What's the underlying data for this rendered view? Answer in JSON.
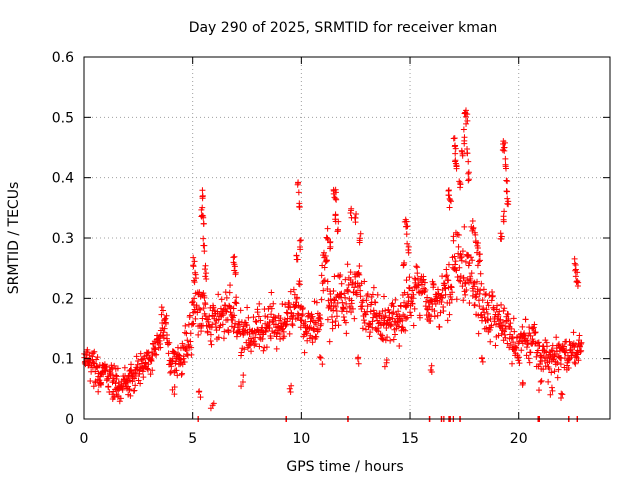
{
  "chart_data": {
    "type": "scatter",
    "title": "Day 290 of 2025, SRMTID for receiver kman",
    "xlabel": "GPS time / hours",
    "ylabel": "SRMTID / TECUs",
    "xlim": [
      0,
      24.2
    ],
    "ylim": [
      0,
      0.6
    ],
    "xticks": [
      0,
      5,
      10,
      15,
      20
    ],
    "xtick_labels": [
      "0",
      "5",
      "10",
      "15",
      "20"
    ],
    "yticks": [
      0,
      0.1,
      0.2,
      0.3,
      0.4,
      0.5,
      0.6
    ],
    "ytick_labels": [
      "0",
      "0.1",
      "0.2",
      "0.3",
      "0.4",
      "0.5",
      "0.6"
    ],
    "grid": true,
    "marker": "+",
    "color": "#ff0000",
    "series": [
      {
        "name": "SRMTID",
        "profile": {
          "t": [
            0,
            0.3,
            0.6,
            1.0,
            1.4,
            1.8,
            2.3,
            2.8,
            3.2,
            3.6,
            4.0,
            4.4,
            4.8,
            5.1,
            5.4,
            5.8,
            6.2,
            6.6,
            7.0,
            7.4,
            7.8,
            8.2,
            8.6,
            9.0,
            9.3,
            9.7,
            10.0,
            10.4,
            10.8,
            11.2,
            11.6,
            12.0,
            12.4,
            12.8,
            13.2,
            13.6,
            14.0,
            14.4,
            14.8,
            15.2,
            15.6,
            16.0,
            16.4,
            16.8,
            17.2,
            17.6,
            18.0,
            18.4,
            18.8,
            19.2,
            19.6,
            20.0,
            20.4,
            20.8,
            21.2,
            21.6,
            22.0,
            22.4,
            22.9
          ],
          "v": [
            0.1,
            0.09,
            0.08,
            0.07,
            0.06,
            0.065,
            0.07,
            0.09,
            0.12,
            0.14,
            0.11,
            0.09,
            0.12,
            0.18,
            0.17,
            0.15,
            0.16,
            0.18,
            0.17,
            0.14,
            0.12,
            0.13,
            0.15,
            0.16,
            0.18,
            0.2,
            0.17,
            0.15,
            0.18,
            0.22,
            0.21,
            0.19,
            0.21,
            0.2,
            0.18,
            0.17,
            0.15,
            0.16,
            0.2,
            0.21,
            0.22,
            0.2,
            0.19,
            0.22,
            0.25,
            0.24,
            0.2,
            0.18,
            0.16,
            0.17,
            0.14,
            0.12,
            0.14,
            0.13,
            0.11,
            0.1,
            0.1,
            0.11,
            0.13
          ],
          "spread": [
            0.035,
            0.035,
            0.03,
            0.025,
            0.025,
            0.025,
            0.025,
            0.03,
            0.03,
            0.03,
            0.03,
            0.03,
            0.04,
            0.05,
            0.05,
            0.05,
            0.05,
            0.05,
            0.05,
            0.045,
            0.04,
            0.04,
            0.04,
            0.04,
            0.05,
            0.05,
            0.045,
            0.045,
            0.05,
            0.06,
            0.06,
            0.05,
            0.05,
            0.05,
            0.05,
            0.045,
            0.04,
            0.045,
            0.05,
            0.05,
            0.05,
            0.05,
            0.05,
            0.06,
            0.07,
            0.07,
            0.06,
            0.05,
            0.045,
            0.045,
            0.04,
            0.035,
            0.035,
            0.035,
            0.03,
            0.03,
            0.03,
            0.03,
            0.03
          ],
          "points_per_hour": 60,
          "t_end": 22.9
        },
        "peaks": [
          [
            5.05,
            0.27
          ],
          [
            5.1,
            0.25
          ],
          [
            5.45,
            0.38
          ],
          [
            5.4,
            0.36
          ],
          [
            5.5,
            0.34
          ],
          [
            5.5,
            0.3
          ],
          [
            5.6,
            0.26
          ],
          [
            6.9,
            0.27
          ],
          [
            6.95,
            0.26
          ],
          [
            9.85,
            0.4
          ],
          [
            9.9,
            0.37
          ],
          [
            9.95,
            0.3
          ],
          [
            9.8,
            0.28
          ],
          [
            11.5,
            0.39
          ],
          [
            11.6,
            0.38
          ],
          [
            11.55,
            0.35
          ],
          [
            11.7,
            0.33
          ],
          [
            11.2,
            0.32
          ],
          [
            11.3,
            0.3
          ],
          [
            12.3,
            0.35
          ],
          [
            12.5,
            0.34
          ],
          [
            12.7,
            0.31
          ],
          [
            14.8,
            0.35
          ],
          [
            14.85,
            0.33
          ],
          [
            14.9,
            0.3
          ],
          [
            14.7,
            0.27
          ],
          [
            16.8,
            0.39
          ],
          [
            16.85,
            0.37
          ],
          [
            17.05,
            0.47
          ],
          [
            17.1,
            0.45
          ],
          [
            17.15,
            0.43
          ],
          [
            17.3,
            0.4
          ],
          [
            17.4,
            0.46
          ],
          [
            17.5,
            0.48
          ],
          [
            17.55,
            0.52
          ],
          [
            17.6,
            0.51
          ],
          [
            17.65,
            0.45
          ],
          [
            17.7,
            0.41
          ],
          [
            17.9,
            0.33
          ],
          [
            18.0,
            0.31
          ],
          [
            18.1,
            0.3
          ],
          [
            18.2,
            0.28
          ],
          [
            19.3,
            0.47
          ],
          [
            19.35,
            0.46
          ],
          [
            19.4,
            0.44
          ],
          [
            19.45,
            0.4
          ],
          [
            19.5,
            0.38
          ],
          [
            19.3,
            0.35
          ],
          [
            19.2,
            0.31
          ],
          [
            22.6,
            0.27
          ],
          [
            22.65,
            0.25
          ],
          [
            22.7,
            0.24
          ]
        ],
        "lows": [
          [
            0.7,
            0.05
          ],
          [
            1.3,
            0.03
          ],
          [
            1.5,
            0.035
          ],
          [
            2.1,
            0.04
          ],
          [
            4.1,
            0.04
          ],
          [
            5.3,
            0.04
          ],
          [
            5.9,
            0.02
          ],
          [
            7.3,
            0.06
          ],
          [
            9.5,
            0.05
          ],
          [
            10.9,
            0.09
          ],
          [
            12.6,
            0.09
          ],
          [
            13.9,
            0.09
          ],
          [
            16.0,
            0.075
          ],
          [
            18.3,
            0.09
          ],
          [
            20.2,
            0.06
          ],
          [
            21.0,
            0.05
          ],
          [
            21.5,
            0.04
          ],
          [
            22.0,
            0.035
          ]
        ],
        "zeros": [
          5.25,
          9.3,
          12.15,
          15.9,
          16.45,
          16.55,
          16.8,
          16.85,
          17.0,
          17.3,
          20.9,
          20.95,
          22.3,
          22.7
        ]
      }
    ]
  }
}
